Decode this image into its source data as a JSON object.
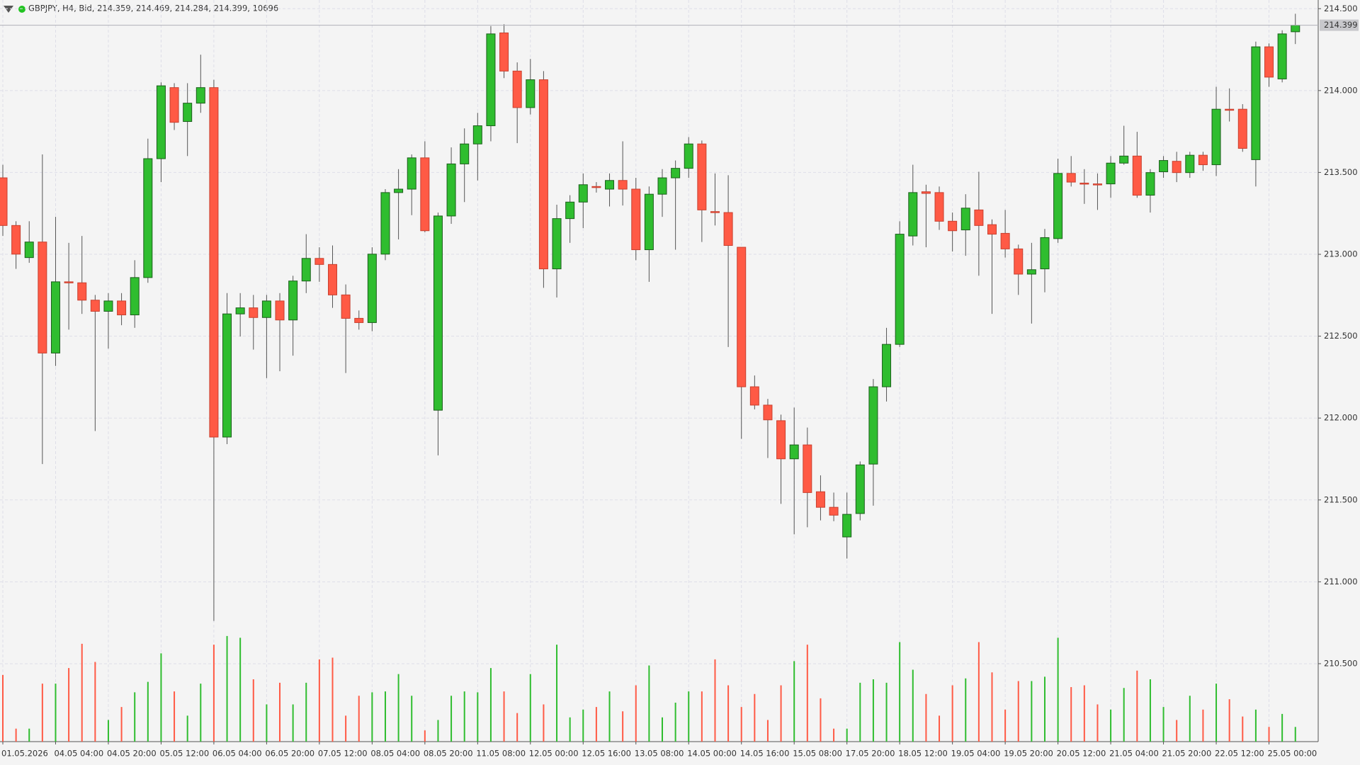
{
  "chart_data": {
    "type": "candlestick",
    "title": "GBPJPY, H4, Bid, 214.359, 214.469, 214.284, 214.399, 10696",
    "categories": [
      "01.05.2026",
      null,
      null,
      null,
      "04.05 04:00",
      null,
      null,
      null,
      "04.05 20:00",
      null,
      null,
      null,
      "05.05 12:00",
      null,
      null,
      null,
      "06.05 04:00",
      null,
      null,
      null,
      "06.05 20:00",
      null,
      null,
      null,
      "07.05 12:00",
      null,
      null,
      null,
      "08.05 04:00",
      null,
      null,
      null,
      "08.05 20:00",
      null,
      null,
      null,
      "11.05 08:00",
      null,
      null,
      null,
      "12.05 00:00",
      null,
      null,
      null,
      "12.05 16:00",
      null,
      null,
      null,
      "13.05 08:00",
      null,
      null,
      null,
      "14.05 00:00",
      null,
      null,
      null,
      "14.05 16:00",
      null,
      null,
      null,
      "15.05 08:00",
      null,
      null,
      null,
      "17.05 20:00",
      null,
      null,
      null,
      "18.05 12:00",
      null,
      null,
      null,
      "19.05 04:00",
      null,
      null,
      null,
      "19.05 20:00",
      null,
      null,
      null,
      "20.05 12:00",
      null,
      null,
      null,
      "21.05 04:00",
      null,
      null,
      null,
      "21.05 20:00",
      null,
      null,
      null,
      "22.05 12:00",
      null,
      null,
      null,
      "25.05 00:00",
      null,
      null
    ],
    "open": [
      213.467,
      213.176,
      212.98,
      213.075,
      212.397,
      212.832,
      212.826,
      212.72,
      212.652,
      212.715,
      212.63,
      212.858,
      213.584,
      214.018,
      213.811,
      213.923,
      214.018,
      211.884,
      212.636,
      212.673,
      212.614,
      212.715,
      212.599,
      212.837,
      212.975,
      212.938,
      212.752,
      212.609,
      212.583,
      213.001,
      213.377,
      213.398,
      213.589,
      212.048,
      213.234,
      213.552,
      213.674,
      213.785,
      214.352,
      214.119,
      213.896,
      214.066,
      212.911,
      213.218,
      213.319,
      213.414,
      213.398,
      213.451,
      213.398,
      213.028,
      213.367,
      213.467,
      213.525,
      213.674,
      213.261,
      213.255,
      213.043,
      212.191,
      212.079,
      211.984,
      211.751,
      211.836,
      211.55,
      211.455,
      211.274,
      211.417,
      211.719,
      212.191,
      212.45,
      213.112,
      213.382,
      213.377,
      213.202,
      213.149,
      213.271,
      213.181,
      213.128,
      213.033,
      212.879,
      212.911,
      213.096,
      213.494,
      213.435,
      213.43,
      213.43,
      213.557,
      213.6,
      213.361,
      213.504,
      213.568,
      213.499,
      213.605,
      213.547,
      213.886,
      213.886,
      213.578,
      214.267,
      214.071,
      214.359
    ],
    "high": [
      213.547,
      213.202,
      213.202,
      213.61,
      213.229,
      213.07,
      213.112,
      212.752,
      212.763,
      212.763,
      212.964,
      213.706,
      214.05,
      214.045,
      214.045,
      214.219,
      214.066,
      212.763,
      212.763,
      212.752,
      212.752,
      212.763,
      212.869,
      213.123,
      213.043,
      213.054,
      212.816,
      212.657,
      213.043,
      213.398,
      213.52,
      213.61,
      213.69,
      213.255,
      213.653,
      213.769,
      213.864,
      214.394,
      214.405,
      214.172,
      214.193,
      214.119,
      213.303,
      213.361,
      213.494,
      213.441,
      213.494,
      213.69,
      213.467,
      213.414,
      213.52,
      213.573,
      213.716,
      213.695,
      213.494,
      213.483,
      213.043,
      212.26,
      212.117,
      212.021,
      212.064,
      211.942,
      211.65,
      211.545,
      211.545,
      211.735,
      212.238,
      212.551,
      213.202,
      213.547,
      213.425,
      213.414,
      213.255,
      213.367,
      213.504,
      213.213,
      213.271,
      213.059,
      213.07,
      213.155,
      213.584,
      213.6,
      213.52,
      213.494,
      213.6,
      213.785,
      213.748,
      213.52,
      213.6,
      213.626,
      213.626,
      213.626,
      214.023,
      214.013,
      213.917,
      214.299,
      214.288,
      214.368,
      214.469
    ],
    "low": [
      213.112,
      212.911,
      212.948,
      211.719,
      212.318,
      212.54,
      212.636,
      211.921,
      212.424,
      212.567,
      212.551,
      212.826,
      213.441,
      213.759,
      213.6,
      213.864,
      210.761,
      211.841,
      212.498,
      212.418,
      212.244,
      212.286,
      212.381,
      212.763,
      212.832,
      212.673,
      212.275,
      212.54,
      212.53,
      212.964,
      213.091,
      213.239,
      213.134,
      211.772,
      213.186,
      213.319,
      213.451,
      213.69,
      214.076,
      213.679,
      213.854,
      212.795,
      212.736,
      213.07,
      213.16,
      213.377,
      213.292,
      213.298,
      212.964,
      212.832,
      213.229,
      213.028,
      213.467,
      213.075,
      213.176,
      212.434,
      211.873,
      212.053,
      211.756,
      211.476,
      211.29,
      211.333,
      211.375,
      211.37,
      211.142,
      211.375,
      211.465,
      212.101,
      212.434,
      213.054,
      213.043,
      213.149,
      213.017,
      212.991,
      212.869,
      212.636,
      212.98,
      212.752,
      212.577,
      212.768,
      213.07,
      213.414,
      213.308,
      213.271,
      213.345,
      213.547,
      213.345,
      213.255,
      213.467,
      213.441,
      213.467,
      213.51,
      213.478,
      213.811,
      213.626,
      213.414,
      214.023,
      214.05,
      214.284
    ],
    "close": [
      213.176,
      213.001,
      213.075,
      212.397,
      212.832,
      212.826,
      212.72,
      212.652,
      212.715,
      212.63,
      212.858,
      213.584,
      214.029,
      213.806,
      213.923,
      214.018,
      211.884,
      212.636,
      212.673,
      212.614,
      212.715,
      212.599,
      212.837,
      212.975,
      212.938,
      212.752,
      212.609,
      212.583,
      213.001,
      213.377,
      213.398,
      213.589,
      213.144,
      213.234,
      213.552,
      213.674,
      213.785,
      214.346,
      214.119,
      213.896,
      214.066,
      212.911,
      213.218,
      213.319,
      213.425,
      213.409,
      213.451,
      213.398,
      213.028,
      213.367,
      213.467,
      213.525,
      213.674,
      213.271,
      213.255,
      213.054,
      212.191,
      212.079,
      211.989,
      211.751,
      211.836,
      211.545,
      211.455,
      211.407,
      211.412,
      211.714,
      212.191,
      212.45,
      213.123,
      213.377,
      213.372,
      213.202,
      213.144,
      213.282,
      213.176,
      213.123,
      213.033,
      212.879,
      212.906,
      213.102,
      213.494,
      213.441,
      213.43,
      213.425,
      213.557,
      213.6,
      213.361,
      213.499,
      213.573,
      213.499,
      213.605,
      213.547,
      213.886,
      213.88,
      213.647,
      214.267,
      214.082,
      214.346,
      214.399
    ],
    "volume": [
      48510,
      9450,
      9450,
      42210,
      42210,
      53550,
      71190,
      57960,
      15750,
      25200,
      35910,
      43470,
      64260,
      36540,
      18900,
      42210,
      70560,
      76860,
      75600,
      45360,
      27090,
      42840,
      27090,
      42840,
      59850,
      61110,
      18900,
      33390,
      35910,
      36540,
      49140,
      33390,
      8190,
      15750,
      33390,
      36540,
      35910,
      53550,
      36540,
      20790,
      49140,
      27090,
      70560,
      17640,
      23310,
      25200,
      36540,
      22050,
      40950,
      55440,
      17640,
      28350,
      36540,
      36540,
      59850,
      40950,
      25200,
      34650,
      15750,
      40950,
      58590,
      70560,
      31500,
      9450,
      9450,
      42840,
      45360,
      42840,
      72450,
      52290,
      34650,
      18900,
      40950,
      45990,
      72450,
      50400,
      23310,
      44100,
      44100,
      47250,
      75600,
      39690,
      40950,
      27090,
      23310,
      39060,
      51660,
      45360,
      25200,
      15750,
      33390,
      23310,
      42210,
      30870,
      18270,
      23310,
      10710,
      20160,
      10696
    ],
    "volume_lim": [
      0,
      100000
    ],
    "ylim": [
      210.024,
      214.553
    ],
    "yticks": [
      {
        "value": 214.5,
        "label": "214.500"
      },
      {
        "value": 214,
        "label": "214.000"
      },
      {
        "value": 213.5,
        "label": "213.500"
      },
      {
        "value": 213,
        "label": "213.000"
      },
      {
        "value": 212.5,
        "label": "212.500"
      },
      {
        "value": 212,
        "label": "212.000"
      },
      {
        "value": 211.5,
        "label": "211.500"
      },
      {
        "value": 211,
        "label": "211.000"
      },
      {
        "value": 210.5,
        "label": "210.500"
      }
    ],
    "last_price": 214.399,
    "grid": true,
    "up_color": "#2fbd2f",
    "down_color": "#ff5a45"
  }
}
